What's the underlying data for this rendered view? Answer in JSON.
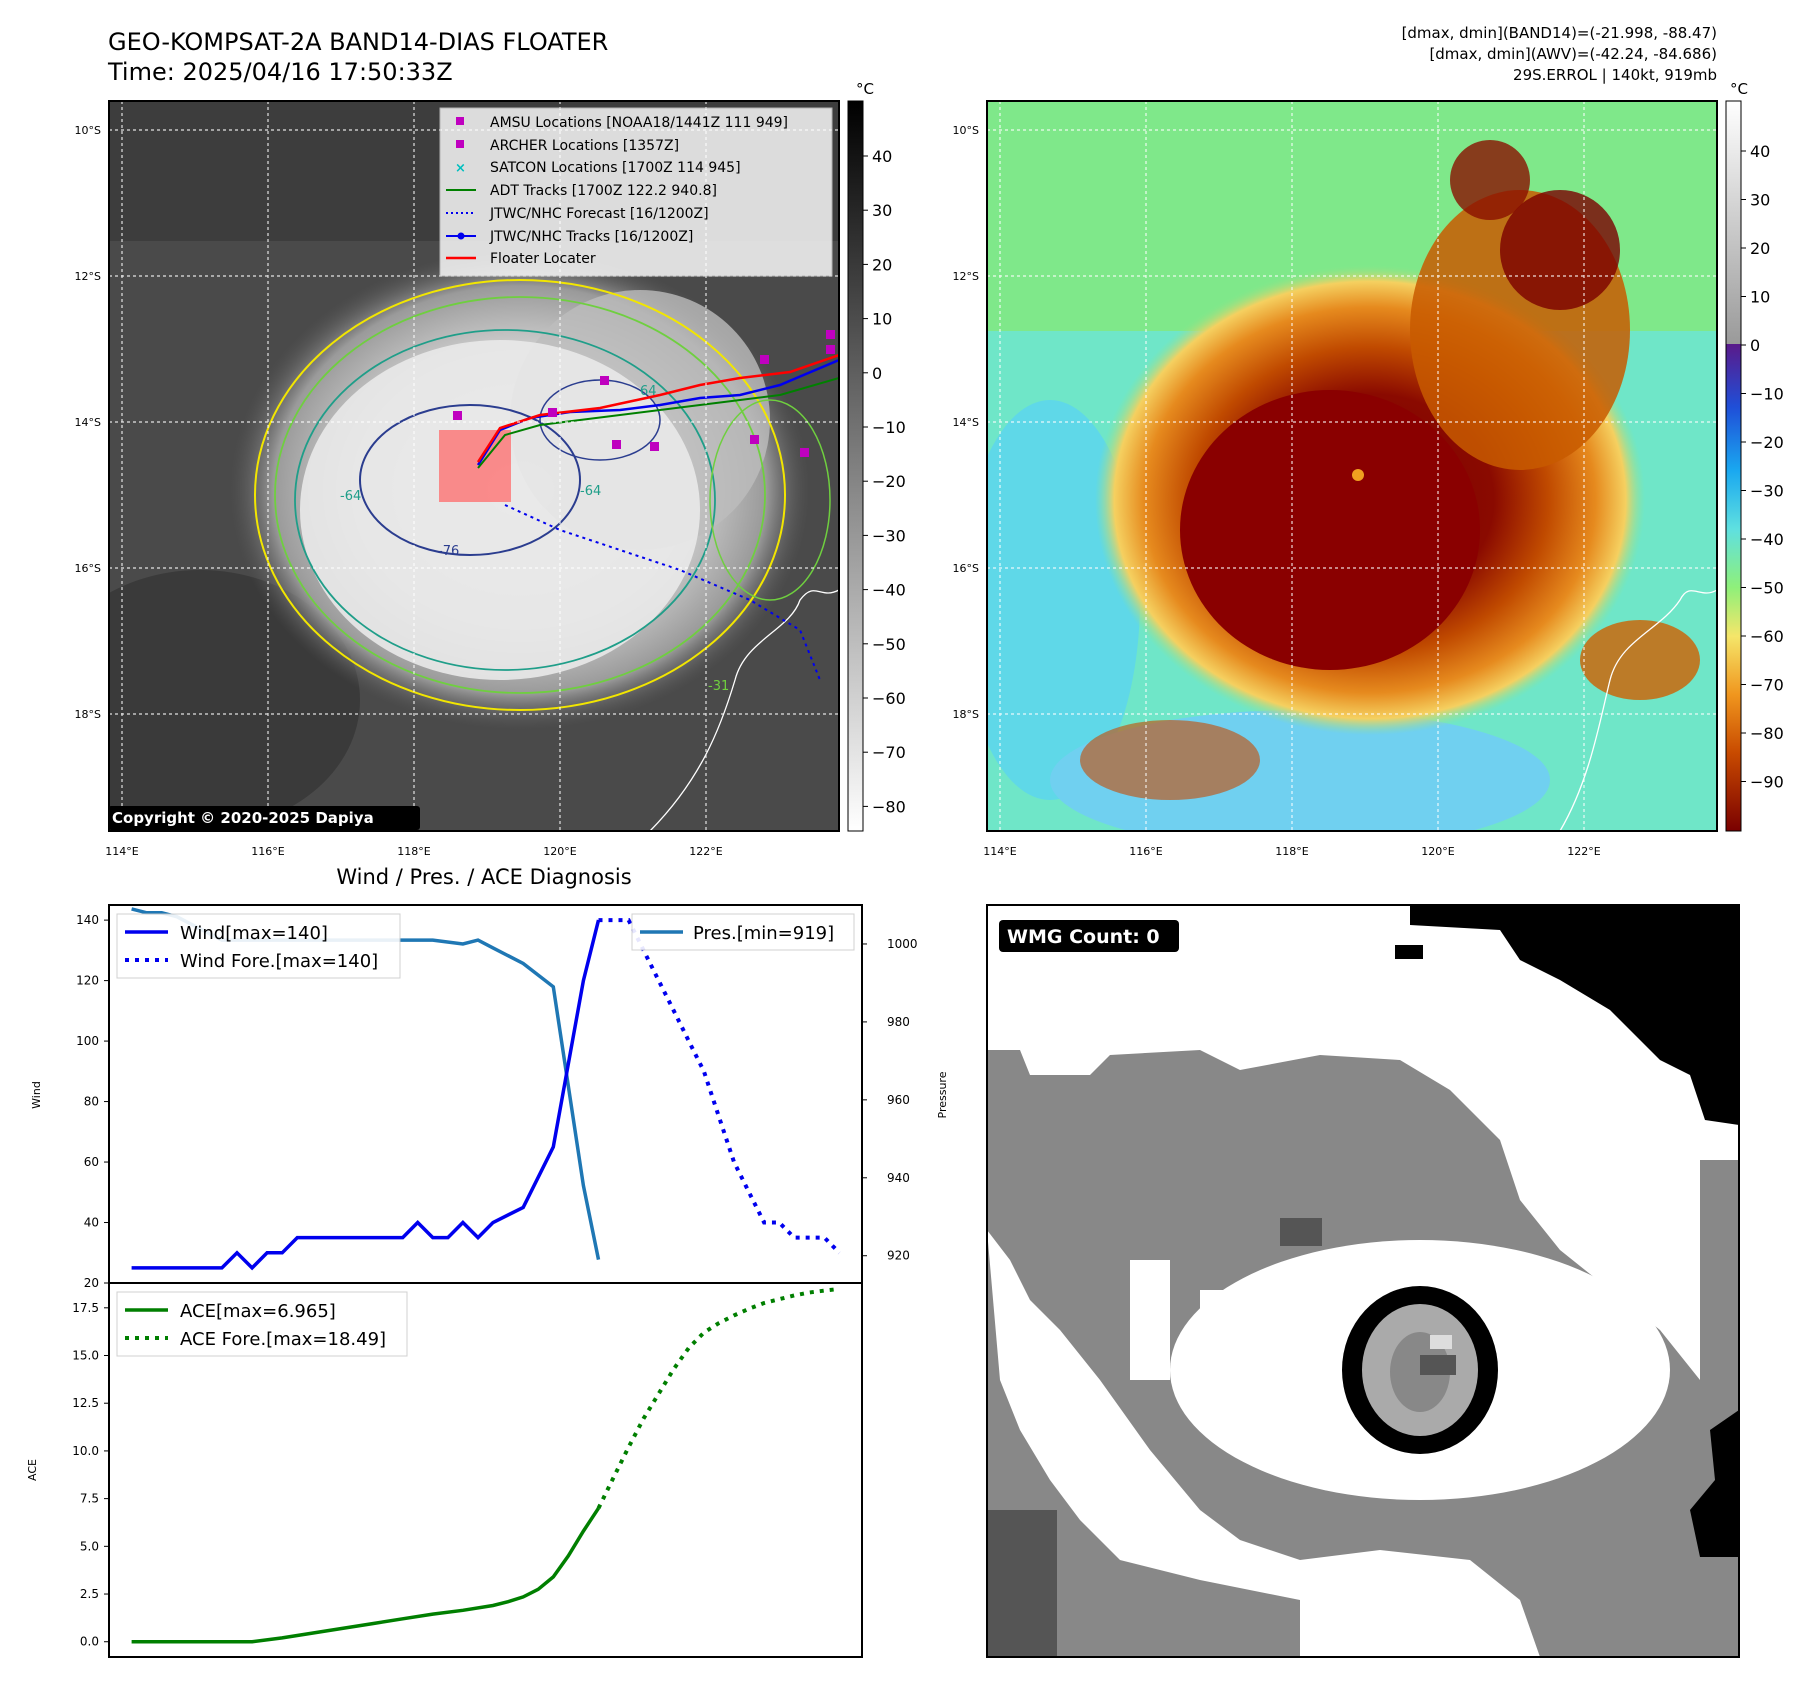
{
  "header": {
    "title_line1": "GEO-KOMPSAT-2A BAND14-DIAS FLOATER",
    "title_line2": "Time: 2025/04/16 17:50:33Z",
    "right_line1": "[dmax, dmin](BAND14)=(-21.998, -88.47)",
    "right_line2": "[dmax, dmin](AWV)=(-42.24, -84.686)",
    "right_line3": "29S.ERROL | 140kt, 919mb"
  },
  "colors": {
    "wind": "#0000ee",
    "pressure": "#1f77b4",
    "ace": "#007f00",
    "amsu": "#bf00bf",
    "satcon": "#00bfbf",
    "adt": "#008000",
    "floater": "#ff0000",
    "contour_yellow": "#f2e600",
    "contour_green": "#6fcf3f",
    "contour_teal": "#1f9e89",
    "contour_navy": "#2b3d8f"
  },
  "maps": {
    "lon_ticks": [
      "114°E",
      "116°E",
      "118°E",
      "120°E",
      "122°E"
    ],
    "lat_ticks": [
      "10°S",
      "12°S",
      "14°S",
      "16°S",
      "18°S"
    ],
    "unit": "°C",
    "ir_colorbar_ticks": [
      "40",
      "30",
      "20",
      "10",
      "0",
      "−10",
      "−20",
      "−30",
      "−40",
      "−50",
      "−60",
      "−70",
      "−80"
    ],
    "enh_colorbar_ticks": [
      "40",
      "30",
      "20",
      "10",
      "0",
      "−10",
      "−20",
      "−30",
      "−40",
      "−50",
      "−60",
      "−70",
      "−80",
      "−90"
    ],
    "copyright": "Copyright © 2020-2025 Dapiya",
    "contour_labels": [
      "-64",
      "-76",
      "-64",
      "-31",
      "64"
    ],
    "legend": [
      {
        "label": "AMSU Locations [NOAA18/1441Z 111 949]",
        "symbol": "square",
        "color": "#bf00bf"
      },
      {
        "label": "ARCHER Locations [1357Z]",
        "symbol": "square",
        "color": "#bf00bf"
      },
      {
        "label": "SATCON Locations [1700Z 114 945]",
        "symbol": "x",
        "color": "#00bfbf"
      },
      {
        "label": "ADT Tracks [1700Z 122.2 940.8]",
        "symbol": "line",
        "color": "#008000"
      },
      {
        "label": "JTWC/NHC Forecast [16/1200Z]",
        "symbol": "dotted",
        "color": "#0000ee"
      },
      {
        "label": "JTWC/NHC Tracks [16/1200Z]",
        "symbol": "line-dot",
        "color": "#0000ee"
      },
      {
        "label": "Floater Locater",
        "symbol": "line",
        "color": "#ff0000"
      }
    ]
  },
  "diag_title": "Wind / Pres. / ACE Diagnosis",
  "wmg": {
    "label": "WMG Count: 0"
  },
  "chart_data": [
    {
      "type": "line",
      "title": "Wind / Pres. / ACE Diagnosis",
      "ylabel": "Wind",
      "ylim": [
        20,
        145
      ],
      "yticks": [
        "20",
        "40",
        "60",
        "80",
        "100",
        "120",
        "140"
      ],
      "y2label": "Pressure",
      "y2lim": [
        913,
        1010
      ],
      "y2ticks": [
        "920",
        "940",
        "960",
        "980",
        "1000"
      ],
      "legend": [
        "Wind[max=140]",
        "Wind Fore.[max=140]",
        "Pres.[min=919]"
      ],
      "series": [
        {
          "name": "Wind[max=140]",
          "x": [
            0,
            2,
            4,
            6,
            7,
            8,
            9,
            10,
            11,
            12,
            13,
            14,
            16,
            18,
            19,
            20,
            21,
            22,
            23,
            24,
            26,
            28,
            30,
            31
          ],
          "values": [
            25,
            25,
            25,
            25,
            30,
            25,
            30,
            30,
            35,
            35,
            35,
            35,
            35,
            35,
            40,
            35,
            35,
            40,
            35,
            40,
            45,
            65,
            120,
            140
          ]
        },
        {
          "name": "Wind Fore.[max=140]",
          "x": [
            31,
            32,
            33,
            34,
            35,
            36,
            37,
            38,
            39,
            40,
            41,
            42,
            43,
            44,
            45,
            46,
            47
          ],
          "values": [
            140,
            140,
            140,
            130,
            120,
            110,
            100,
            90,
            75,
            60,
            50,
            40,
            40,
            35,
            35,
            35,
            30
          ]
        },
        {
          "name": "Pres.[min=919]",
          "x": [
            0,
            1,
            2,
            3,
            4,
            5,
            6,
            8,
            10,
            12,
            14,
            16,
            18,
            20,
            22,
            23,
            24,
            26,
            28,
            30,
            31
          ],
          "values": [
            1009,
            1008,
            1008,
            1007,
            1005,
            1003,
            1001,
            1001,
            1001,
            1001,
            1001,
            1001,
            1001,
            1001,
            1000,
            1001,
            999,
            995,
            989,
            938,
            919
          ]
        }
      ]
    },
    {
      "type": "line",
      "ylabel": "ACE",
      "ylim": [
        -0.8,
        18.8
      ],
      "yticks": [
        "0.0",
        "2.5",
        "5.0",
        "7.5",
        "10.0",
        "12.5",
        "15.0",
        "17.5"
      ],
      "legend": [
        "ACE[max=6.965]",
        "ACE Fore.[max=18.49]"
      ],
      "series": [
        {
          "name": "ACE[max=6.965]",
          "x": [
            0,
            2,
            4,
            6,
            8,
            10,
            12,
            14,
            16,
            18,
            20,
            22,
            24,
            25,
            26,
            27,
            28,
            29,
            30,
            31
          ],
          "values": [
            0,
            0,
            0,
            0,
            0,
            0.2,
            0.45,
            0.7,
            0.95,
            1.2,
            1.45,
            1.65,
            1.9,
            2.1,
            2.35,
            2.75,
            3.4,
            4.5,
            5.8,
            7.0
          ]
        },
        {
          "name": "ACE Fore.[max=18.49]",
          "x": [
            31,
            32,
            33,
            34,
            35,
            36,
            37,
            38,
            39,
            40,
            41,
            42,
            43,
            44,
            45,
            46,
            47
          ],
          "values": [
            7.0,
            8.6,
            10.2,
            11.7,
            13.0,
            14.3,
            15.4,
            16.2,
            16.7,
            17.1,
            17.45,
            17.75,
            17.95,
            18.15,
            18.3,
            18.4,
            18.49
          ]
        }
      ]
    }
  ]
}
